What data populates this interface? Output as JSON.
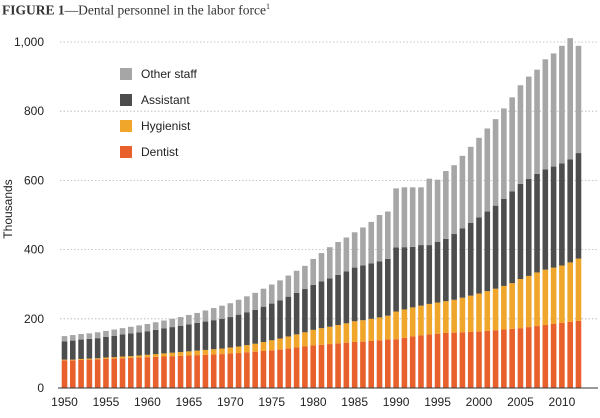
{
  "figure": {
    "label": "FIGURE 1",
    "title": "—Dental personnel in the labor force",
    "footnote_mark": "1"
  },
  "chart_data": {
    "type": "bar",
    "stacked": true,
    "title": "Dental personnel in the labor force",
    "xlabel": "",
    "ylabel": "Thousands",
    "ylim": [
      0,
      1000
    ],
    "yticks": [
      0,
      200,
      400,
      600,
      800,
      1000
    ],
    "ytick_labels": [
      "0",
      "200",
      "400",
      "600",
      "800",
      "1,000"
    ],
    "xtick_labels": [
      "1950",
      "1955",
      "1960",
      "1965",
      "1970",
      "1975",
      "1980",
      "1985",
      "1990",
      "1995",
      "2000",
      "2005",
      "2010"
    ],
    "grid": "horizontal dotted",
    "legend_position": "top-left",
    "categories": [
      1950,
      1951,
      1952,
      1953,
      1954,
      1955,
      1956,
      1957,
      1958,
      1959,
      1960,
      1961,
      1962,
      1963,
      1964,
      1965,
      1966,
      1967,
      1968,
      1969,
      1970,
      1971,
      1972,
      1973,
      1974,
      1975,
      1976,
      1977,
      1978,
      1979,
      1980,
      1981,
      1982,
      1983,
      1984,
      1985,
      1986,
      1987,
      1988,
      1989,
      1990,
      1991,
      1992,
      1993,
      1994,
      1995,
      1996,
      1997,
      1998,
      1999,
      2000,
      2001,
      2002,
      2003,
      2004,
      2005,
      2006,
      2007,
      2008,
      2009,
      2010,
      2011,
      2012
    ],
    "series": [
      {
        "name": "Dentist",
        "color": "#e8612c",
        "values": [
          80,
          80,
          81,
          82,
          83,
          84,
          85,
          86,
          87,
          88,
          89,
          90,
          91,
          92,
          93,
          94,
          95,
          96,
          97,
          98,
          100,
          101,
          103,
          105,
          107,
          109,
          111,
          114,
          117,
          120,
          123,
          125,
          127,
          129,
          131,
          133,
          134,
          136,
          138,
          140,
          141,
          145,
          149,
          152,
          155,
          157,
          159,
          160,
          161,
          162,
          163,
          165,
          167,
          169,
          171,
          173,
          176,
          179,
          182,
          185,
          188,
          191,
          194
        ]
      },
      {
        "name": "Hygienist",
        "color": "#f0a62a",
        "values": [
          2,
          2,
          3,
          3,
          3,
          4,
          4,
          5,
          5,
          6,
          7,
          8,
          9,
          10,
          11,
          12,
          13,
          14,
          15,
          16,
          17,
          19,
          21,
          23,
          26,
          29,
          32,
          35,
          38,
          41,
          45,
          48,
          50,
          53,
          56,
          60,
          62,
          64,
          66,
          69,
          80,
          82,
          84,
          86,
          88,
          90,
          92,
          95,
          100,
          105,
          110,
          115,
          120,
          126,
          132,
          142,
          148,
          155,
          160,
          163,
          166,
          172,
          180
        ]
      },
      {
        "name": "Assistant",
        "color": "#4d4d4d",
        "values": [
          53,
          55,
          56,
          57,
          58,
          60,
          62,
          64,
          66,
          67,
          68,
          70,
          72,
          74,
          76,
          78,
          80,
          82,
          84,
          86,
          88,
          92,
          95,
          98,
          102,
          106,
          110,
          115,
          120,
          125,
          130,
          135,
          140,
          145,
          150,
          155,
          158,
          160,
          162,
          164,
          185,
          180,
          175,
          175,
          170,
          175,
          180,
          190,
          200,
          210,
          220,
          230,
          240,
          252,
          265,
          275,
          280,
          285,
          290,
          292,
          295,
          298,
          305
        ]
      },
      {
        "name": "Other staff",
        "color": "#a6a6a6",
        "values": [
          15,
          16,
          16,
          16,
          17,
          17,
          18,
          18,
          19,
          20,
          21,
          22,
          23,
          24,
          25,
          27,
          29,
          32,
          35,
          38,
          40,
          43,
          46,
          49,
          52,
          55,
          58,
          61,
          64,
          67,
          75,
          82,
          90,
          95,
          98,
          102,
          110,
          120,
          134,
          137,
          171,
          173,
          172,
          167,
          192,
          180,
          196,
          199,
          210,
          220,
          230,
          240,
          250,
          261,
          272,
          285,
          296,
          301,
          318,
          327,
          340,
          350,
          310
        ]
      }
    ]
  }
}
